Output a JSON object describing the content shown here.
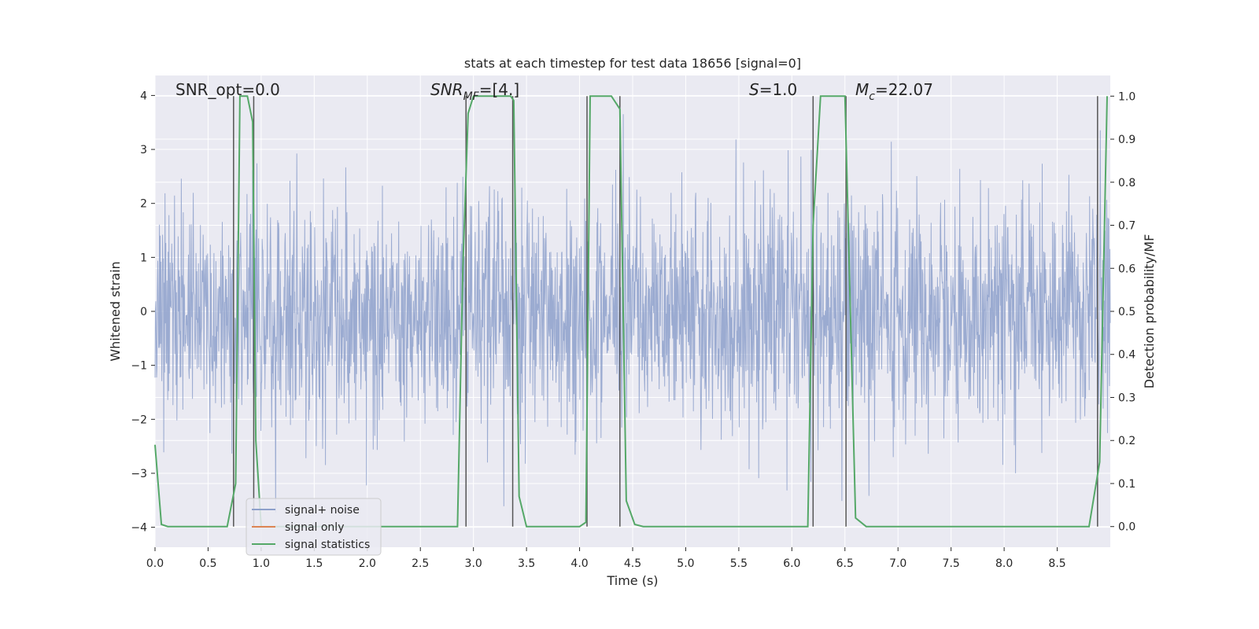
{
  "chart_data": {
    "type": "line",
    "title": "stats at each timestep for test data 18656 [signal=0]",
    "xlabel": "Time (s)",
    "ylabel": "Whitened strain",
    "y2label": "Detection probability/MF",
    "xlim": [
      0.0,
      9.0
    ],
    "ylim": [
      -4.37,
      4.37
    ],
    "y2lim": [
      -0.048,
      1.048
    ],
    "xticks": [
      "0.0",
      "0.5",
      "1.0",
      "1.5",
      "2.0",
      "2.5",
      "3.0",
      "3.5",
      "4.0",
      "4.5",
      "5.0",
      "5.5",
      "6.0",
      "6.5",
      "7.0",
      "7.5",
      "8.0",
      "8.5"
    ],
    "yticks": [
      "−4",
      "−3",
      "−2",
      "−1",
      "0",
      "1",
      "2",
      "3",
      "4"
    ],
    "y2ticks": [
      "0.0",
      "0.1",
      "0.2",
      "0.3",
      "0.4",
      "0.5",
      "0.6",
      "0.7",
      "0.8",
      "0.9",
      "1.0"
    ],
    "grid": true,
    "legend": {
      "placement": "lower-left",
      "entries": [
        {
          "label": "signal+ noise",
          "color": "#8da0cb"
        },
        {
          "label": "signal only",
          "color": "#dd8452"
        },
        {
          "label": "signal statistics",
          "color": "#55a868"
        }
      ]
    },
    "annotations": {
      "snr_opt": "SNR_opt=0.0",
      "snr_mf_base": "SNR",
      "snr_mf_sub": "MF",
      "snr_mf_val": "=[4.]",
      "s_sym": "S",
      "s_val": "=1.0",
      "mc_sym": "M",
      "mc_sub": "c",
      "mc_val": "=22.07"
    },
    "series": [
      {
        "name": "signal statistics",
        "axis": "right",
        "color": "#55a868",
        "x": [
          0.0,
          0.06,
          0.12,
          0.68,
          0.76,
          0.8,
          0.87,
          0.92,
          0.95,
          1.0,
          1.2,
          2.0,
          2.85,
          2.9,
          2.95,
          3.0,
          3.35,
          3.38,
          3.43,
          3.5,
          3.6,
          4.0,
          4.06,
          4.1,
          4.15,
          4.3,
          4.38,
          4.44,
          4.52,
          4.6,
          5.0,
          6.15,
          6.2,
          6.27,
          6.5,
          6.6,
          6.7,
          7.0,
          8.8,
          8.9,
          8.97
        ],
        "y": [
          0.19,
          0.005,
          0.0,
          0.0,
          0.1,
          1.0,
          1.0,
          0.94,
          0.2,
          0.0,
          0.0,
          0.0,
          0.0,
          0.6,
          0.96,
          1.0,
          1.0,
          0.99,
          0.07,
          0.0,
          0.0,
          0.0,
          0.01,
          1.0,
          1.0,
          1.0,
          0.97,
          0.06,
          0.005,
          0.0,
          0.0,
          0.0,
          0.7,
          1.0,
          1.0,
          0.02,
          0.0,
          0.0,
          0.0,
          0.15,
          1.0
        ]
      }
    ],
    "vlines": [
      0.74,
      0.93,
      2.93,
      3.37,
      4.07,
      4.38,
      6.2,
      6.51,
      8.88
    ]
  }
}
